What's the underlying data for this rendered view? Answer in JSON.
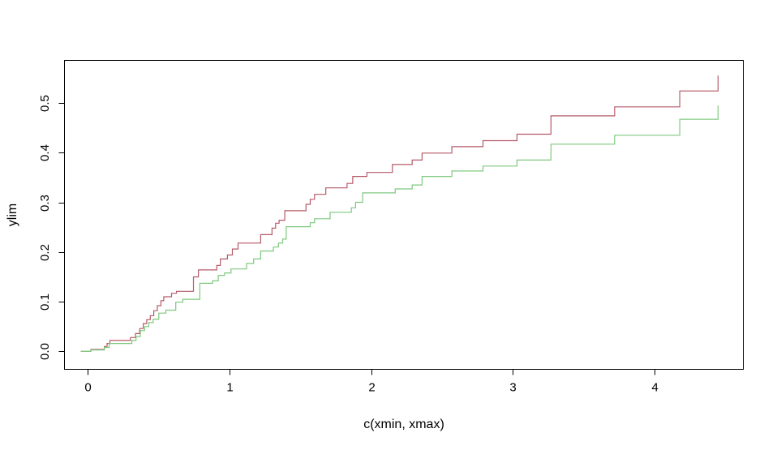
{
  "chart_data": {
    "type": "line",
    "subtype": "step",
    "xlabel": "c(xmin, xmax)",
    "ylabel": "ylim",
    "x_tick_labels": [
      "0",
      "1",
      "2",
      "3",
      "4"
    ],
    "x_tick_values": [
      0,
      1,
      2,
      3,
      4
    ],
    "y_tick_labels": [
      "0.0",
      "0.1",
      "0.2",
      "0.3",
      "0.4",
      "0.5"
    ],
    "y_tick_values": [
      0.0,
      0.1,
      0.2,
      0.3,
      0.4,
      0.5
    ],
    "xlim": [
      -0.166,
      4.629
    ],
    "ylim": [
      -0.036,
      0.5855
    ],
    "grid": false,
    "legend": false,
    "axis_color": "#000000",
    "background": "#ffffff",
    "series": [
      {
        "id": "dark-red-step-curve",
        "color": "#B55A68",
        "points": [
          [
            -0.05,
            0.0
          ],
          [
            0.02,
            0.004
          ],
          [
            0.115,
            0.01
          ],
          [
            0.135,
            0.016
          ],
          [
            0.155,
            0.022
          ],
          [
            0.3,
            0.028
          ],
          [
            0.335,
            0.036
          ],
          [
            0.365,
            0.046
          ],
          [
            0.39,
            0.056
          ],
          [
            0.415,
            0.064
          ],
          [
            0.44,
            0.072
          ],
          [
            0.465,
            0.082
          ],
          [
            0.49,
            0.092
          ],
          [
            0.515,
            0.102
          ],
          [
            0.535,
            0.11
          ],
          [
            0.59,
            0.117
          ],
          [
            0.625,
            0.121
          ],
          [
            0.745,
            0.15
          ],
          [
            0.78,
            0.164
          ],
          [
            0.91,
            0.173
          ],
          [
            0.935,
            0.186
          ],
          [
            0.985,
            0.194
          ],
          [
            1.02,
            0.206
          ],
          [
            1.06,
            0.218
          ],
          [
            1.22,
            0.235
          ],
          [
            1.3,
            0.248
          ],
          [
            1.325,
            0.258
          ],
          [
            1.35,
            0.264
          ],
          [
            1.39,
            0.283
          ],
          [
            1.54,
            0.296
          ],
          [
            1.57,
            0.306
          ],
          [
            1.6,
            0.316
          ],
          [
            1.68,
            0.329
          ],
          [
            1.83,
            0.338
          ],
          [
            1.87,
            0.352
          ],
          [
            1.97,
            0.36
          ],
          [
            2.15,
            0.376
          ],
          [
            2.29,
            0.385
          ],
          [
            2.36,
            0.399
          ],
          [
            2.57,
            0.412
          ],
          [
            2.79,
            0.424
          ],
          [
            3.03,
            0.437
          ],
          [
            3.27,
            0.474
          ],
          [
            3.72,
            0.492
          ],
          [
            4.18,
            0.524
          ],
          [
            4.45,
            0.555
          ]
        ]
      },
      {
        "id": "green-step-curve",
        "color": "#7FC87F",
        "points": [
          [
            -0.05,
            0.0
          ],
          [
            0.02,
            0.003
          ],
          [
            0.115,
            0.008
          ],
          [
            0.15,
            0.016
          ],
          [
            0.31,
            0.022
          ],
          [
            0.34,
            0.03
          ],
          [
            0.37,
            0.042
          ],
          [
            0.4,
            0.05
          ],
          [
            0.43,
            0.058
          ],
          [
            0.46,
            0.065
          ],
          [
            0.5,
            0.077
          ],
          [
            0.55,
            0.083
          ],
          [
            0.62,
            0.099
          ],
          [
            0.67,
            0.105
          ],
          [
            0.79,
            0.137
          ],
          [
            0.88,
            0.142
          ],
          [
            0.92,
            0.153
          ],
          [
            0.965,
            0.158
          ],
          [
            1.01,
            0.166
          ],
          [
            1.12,
            0.177
          ],
          [
            1.17,
            0.186
          ],
          [
            1.22,
            0.202
          ],
          [
            1.31,
            0.21
          ],
          [
            1.345,
            0.218
          ],
          [
            1.375,
            0.226
          ],
          [
            1.4,
            0.251
          ],
          [
            1.57,
            0.259
          ],
          [
            1.6,
            0.267
          ],
          [
            1.71,
            0.28
          ],
          [
            1.86,
            0.289
          ],
          [
            1.89,
            0.3
          ],
          [
            1.94,
            0.319
          ],
          [
            2.17,
            0.327
          ],
          [
            2.29,
            0.335
          ],
          [
            2.36,
            0.352
          ],
          [
            2.57,
            0.363
          ],
          [
            2.79,
            0.373
          ],
          [
            3.03,
            0.385
          ],
          [
            3.27,
            0.417
          ],
          [
            3.72,
            0.435
          ],
          [
            4.18,
            0.467
          ],
          [
            4.45,
            0.495
          ]
        ]
      }
    ]
  }
}
